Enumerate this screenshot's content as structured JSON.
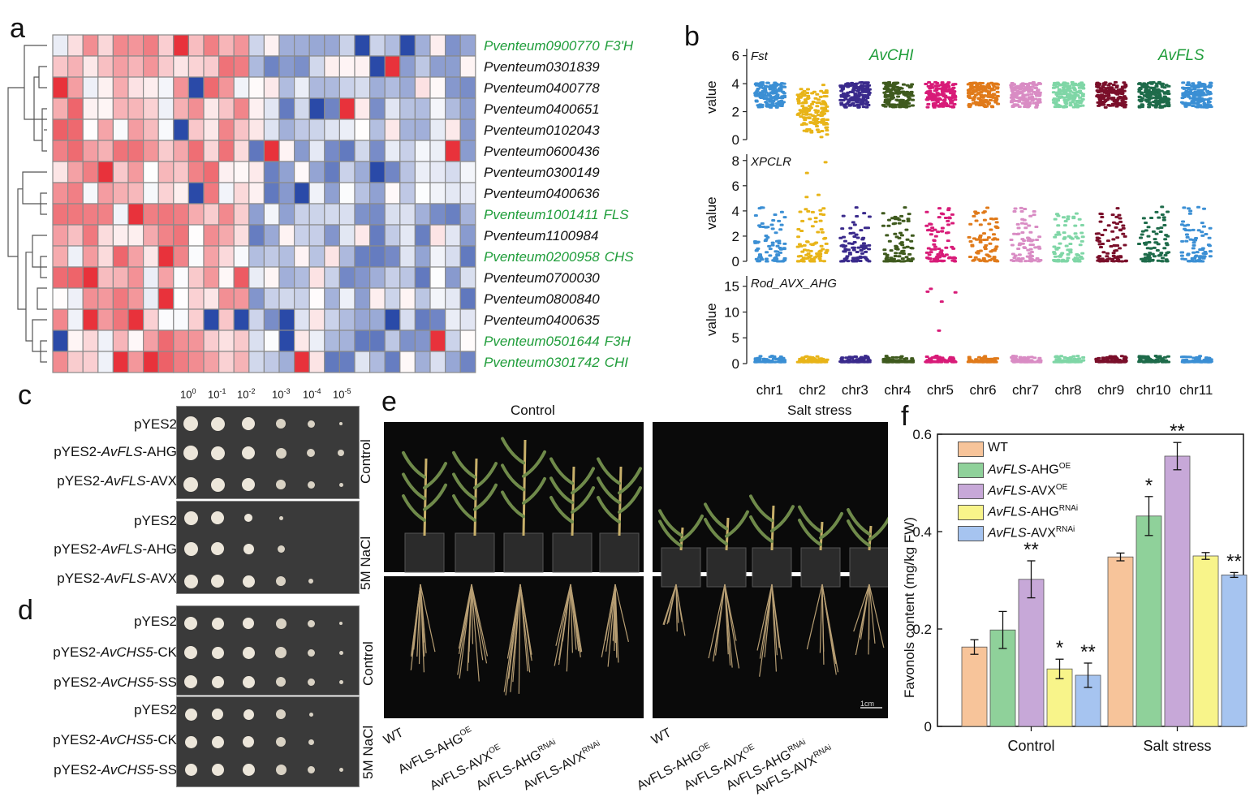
{
  "panels": {
    "a": "a",
    "b": "b",
    "c": "c",
    "d": "d",
    "e": "e",
    "f": "f"
  },
  "heatmap": {
    "genes": [
      {
        "id": "Pventeum0900770",
        "tag": "F3'H",
        "green": true
      },
      {
        "id": "Pventeum0301839",
        "tag": "",
        "green": false
      },
      {
        "id": "Pventeum0400778",
        "tag": "",
        "green": false
      },
      {
        "id": "Pventeum0400651",
        "tag": "",
        "green": false
      },
      {
        "id": "Pventeum0102043",
        "tag": "",
        "green": false
      },
      {
        "id": "Pventeum0600436",
        "tag": "",
        "green": false
      },
      {
        "id": "Pventeum0300149",
        "tag": "",
        "green": false
      },
      {
        "id": "Pventeum0400636",
        "tag": "",
        "green": false
      },
      {
        "id": "Pventeum1001411",
        "tag": "FLS",
        "green": true
      },
      {
        "id": "Pventeum1100984",
        "tag": "",
        "green": false
      },
      {
        "id": "Pventeum0200958",
        "tag": "CHS",
        "green": true
      },
      {
        "id": "Pventeum0700030",
        "tag": "",
        "green": false
      },
      {
        "id": "Pventeum0800840",
        "tag": "",
        "green": false
      },
      {
        "id": "Pventeum0400635",
        "tag": "",
        "green": false
      },
      {
        "id": "Pventeum0501644",
        "tag": "F3H",
        "green": true
      },
      {
        "id": "Pventeum0301742",
        "tag": "CHI",
        "green": true
      }
    ],
    "colors": {
      "high": "#e8323b",
      "low": "#2a4aa8",
      "mid": "#ffffff"
    }
  },
  "manhattan": {
    "tracks": [
      {
        "label": "Fst",
        "ylabel": "value",
        "ticks": [
          "6",
          "4",
          "2",
          "0"
        ]
      },
      {
        "label": "XPCLR",
        "ylabel": "value",
        "ticks": [
          "8",
          "6",
          "4",
          "2",
          "0"
        ]
      },
      {
        "label": "Rod_AVX_AHG",
        "ylabel": "value",
        "ticks": [
          "15",
          "10",
          "5",
          "0"
        ]
      }
    ],
    "chromosomes": [
      "chr1",
      "chr2",
      "chr3",
      "chr4",
      "chr5",
      "chr6",
      "chr7",
      "chr8",
      "chr9",
      "chr10",
      "chr11"
    ],
    "chr_colors": [
      "#3b8fd4",
      "#e8b418",
      "#3a2a8c",
      "#3f5a1e",
      "#d81b78",
      "#e07a1a",
      "#d98cc4",
      "#7fd6a6",
      "#7a0f2a",
      "#1e6b4a",
      "#3b8fd4"
    ],
    "annotations": [
      "AvCHI",
      "AvFLS"
    ]
  },
  "yeast": {
    "dilutions": [
      "10",
      "0",
      "10",
      "-1",
      "10",
      "-2",
      "10",
      "-3",
      "10",
      "-4",
      "10",
      "-5"
    ],
    "panel_c": {
      "control": [
        "pYES2",
        "pYES2-",
        "AvFLS",
        "-AHG",
        "pYES2-",
        "AvFLS",
        "-AVX"
      ],
      "nacl": [
        "pYES2",
        "pYES2-",
        "AvFLS",
        "-AHG",
        "pYES2-",
        "AvFLS",
        "-AVX"
      ]
    },
    "panel_d": {
      "control": [
        "pYES2",
        "pYES2-",
        "AvCHS5",
        "-CK",
        "pYES2-",
        "AvCHS5",
        "-SS"
      ],
      "nacl": [
        "pYES2",
        "pYES2-",
        "AvCHS5",
        "-CK",
        "pYES2-",
        "AvCHS5",
        "-SS"
      ]
    },
    "cond_control": "Control",
    "cond_nacl": "5M NaCl"
  },
  "plants": {
    "title_control": "Control",
    "title_salt": "Salt stress",
    "side_control": "Control",
    "side_nacl": "5M NaCl",
    "scale": "1cm",
    "lines": [
      {
        "base": "WT",
        "sup": ""
      },
      {
        "base": "AvFLS-AHG",
        "sup": "OE"
      },
      {
        "base": "AvFLS-AVX",
        "sup": "OE"
      },
      {
        "base": "AvFLS-AHG",
        "sup": "RNAi"
      },
      {
        "base": "AvFLS-AVX",
        "sup": "RNAi"
      }
    ]
  },
  "chart_data": {
    "type": "bar",
    "title": "",
    "xlabel": "",
    "ylabel": "Favonols content (mg/kg FW)",
    "ylim": [
      0,
      0.6
    ],
    "yticks": [
      "0",
      "0.2",
      "0.4",
      "0.6"
    ],
    "categories": [
      "Control",
      "Salt stress"
    ],
    "series": [
      {
        "name": "WT",
        "name_it": "",
        "sup": "",
        "color": "#f7c49a",
        "values": [
          0.163,
          0.348
        ],
        "err": [
          0.015,
          0.008
        ],
        "sig": [
          "",
          ""
        ]
      },
      {
        "name": "-AHG",
        "name_it": "AvFLS",
        "sup": "OE",
        "color": "#8fd19a",
        "values": [
          0.198,
          0.432
        ],
        "err": [
          0.038,
          0.04
        ],
        "sig": [
          "",
          "*"
        ]
      },
      {
        "name": "-AVX",
        "name_it": "AvFLS",
        "sup": "OE",
        "color": "#c7a8d8",
        "values": [
          0.302,
          0.555
        ],
        "err": [
          0.038,
          0.028
        ],
        "sig": [
          "**",
          "**"
        ]
      },
      {
        "name": "-AHG",
        "name_it": "AvFLS",
        "sup": "RNAi",
        "color": "#f8f48a",
        "values": [
          0.118,
          0.35
        ],
        "err": [
          0.02,
          0.007
        ],
        "sig": [
          "*",
          ""
        ]
      },
      {
        "name": "-AVX",
        "name_it": "AvFLS",
        "sup": "RNAi",
        "color": "#a6c4f0",
        "values": [
          0.105,
          0.311
        ],
        "err": [
          0.025,
          0.005
        ],
        "sig": [
          "**",
          "**"
        ]
      }
    ]
  }
}
